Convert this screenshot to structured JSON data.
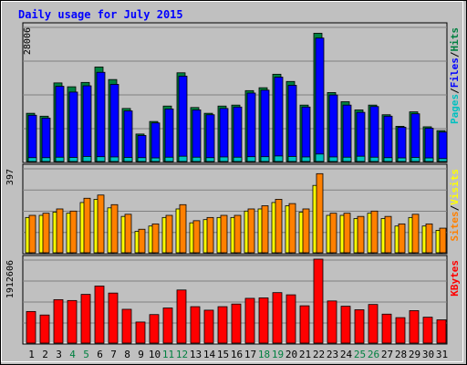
{
  "chart_data": {
    "type": "bar",
    "title": "Daily usage for July 2015",
    "categories": [
      "1",
      "2",
      "3",
      "4",
      "5",
      "6",
      "7",
      "8",
      "9",
      "10",
      "11",
      "12",
      "13",
      "14",
      "15",
      "16",
      "17",
      "18",
      "19",
      "20",
      "21",
      "22",
      "23",
      "24",
      "25",
      "26",
      "27",
      "28",
      "29",
      "30",
      "31"
    ],
    "weekend_days": [
      "4",
      "5",
      "11",
      "12",
      "18",
      "19",
      "25",
      "26"
    ],
    "panels": [
      {
        "name": "hits-files-pages",
        "ytick": "28006",
        "ymax": 28006,
        "legend": [
          {
            "text": "Pages",
            "color": "#00c0c0"
          },
          {
            "text": "/",
            "color": "#000000"
          },
          {
            "text": "Files",
            "color": "#0000ff"
          },
          {
            "text": "/",
            "color": "#000000"
          },
          {
            "text": "Hits",
            "color": "#008040"
          }
        ],
        "series": [
          {
            "name": "Hits",
            "color": "#008040",
            "values": [
              10000,
              9400,
              16300,
              15500,
              16400,
              19600,
              17000,
              11000,
              5700,
              8300,
              11500,
              18400,
              11200,
              10000,
              11500,
              11700,
              14700,
              15300,
              18100,
              16600,
              11700,
              26600,
              14300,
              12400,
              10700,
              11700,
              9700,
              7300,
              10300,
              7200,
              6400
            ]
          },
          {
            "name": "Files",
            "color": "#0000ff",
            "values": [
              9600,
              9000,
              15600,
              14400,
              15700,
              18500,
              16000,
              10500,
              5400,
              8000,
              10900,
              17700,
              10700,
              9700,
              11000,
              11300,
              14200,
              14800,
              17500,
              15800,
              11300,
              25600,
              13800,
              11700,
              10200,
              11400,
              9400,
              7100,
              9900,
              6900,
              6100
            ]
          },
          {
            "name": "Pages",
            "color": "#00c0c0",
            "values": [
              800,
              800,
              900,
              850,
              1050,
              1000,
              950,
              850,
              800,
              750,
              900,
              1100,
              900,
              800,
              950,
              900,
              1000,
              1000,
              1150,
              1050,
              950,
              1550,
              950,
              900,
              1100,
              900,
              800,
              750,
              850,
              750,
              600
            ]
          }
        ]
      },
      {
        "name": "visits-sites",
        "ytick": "397",
        "ymax": 397,
        "legend": [
          {
            "text": "Sites",
            "color": "#ff8000"
          },
          {
            "text": "/",
            "color": "#000000"
          },
          {
            "text": "Visits",
            "color": "#ffff00"
          }
        ],
        "series": [
          {
            "name": "Visits",
            "color": "#ffff00",
            "values": [
              165,
              175,
              190,
              185,
              235,
              250,
              210,
              170,
              100,
              125,
              165,
              205,
              140,
              155,
              165,
              165,
              195,
              205,
              235,
              220,
              190,
              315,
              175,
              175,
              160,
              185,
              160,
              125,
              165,
              125,
              105
            ]
          },
          {
            "name": "Sites",
            "color": "#ff8000",
            "values": [
              175,
              185,
              205,
              195,
              255,
              270,
              225,
              180,
              110,
              135,
              175,
              225,
              150,
              165,
              175,
              175,
              205,
              220,
              250,
              230,
              205,
              370,
              185,
              185,
              170,
              195,
              170,
              135,
              180,
              135,
              115
            ]
          }
        ]
      },
      {
        "name": "kbytes",
        "ytick": "1912606",
        "ymax": 1912606,
        "legend": [
          {
            "text": "KBytes",
            "color": "#ff0000"
          }
        ],
        "series": [
          {
            "name": "KBytes",
            "color": "#ff0000",
            "values": [
              720000,
              640000,
              990000,
              970000,
              1110000,
              1300000,
              1140000,
              770000,
              480000,
              650000,
              800000,
              1210000,
              830000,
              750000,
              830000,
              890000,
              1020000,
              1030000,
              1150000,
              1100000,
              850000,
              1912606,
              960000,
              840000,
              760000,
              880000,
              660000,
              580000,
              740000,
              590000,
              530000
            ]
          }
        ]
      }
    ]
  }
}
